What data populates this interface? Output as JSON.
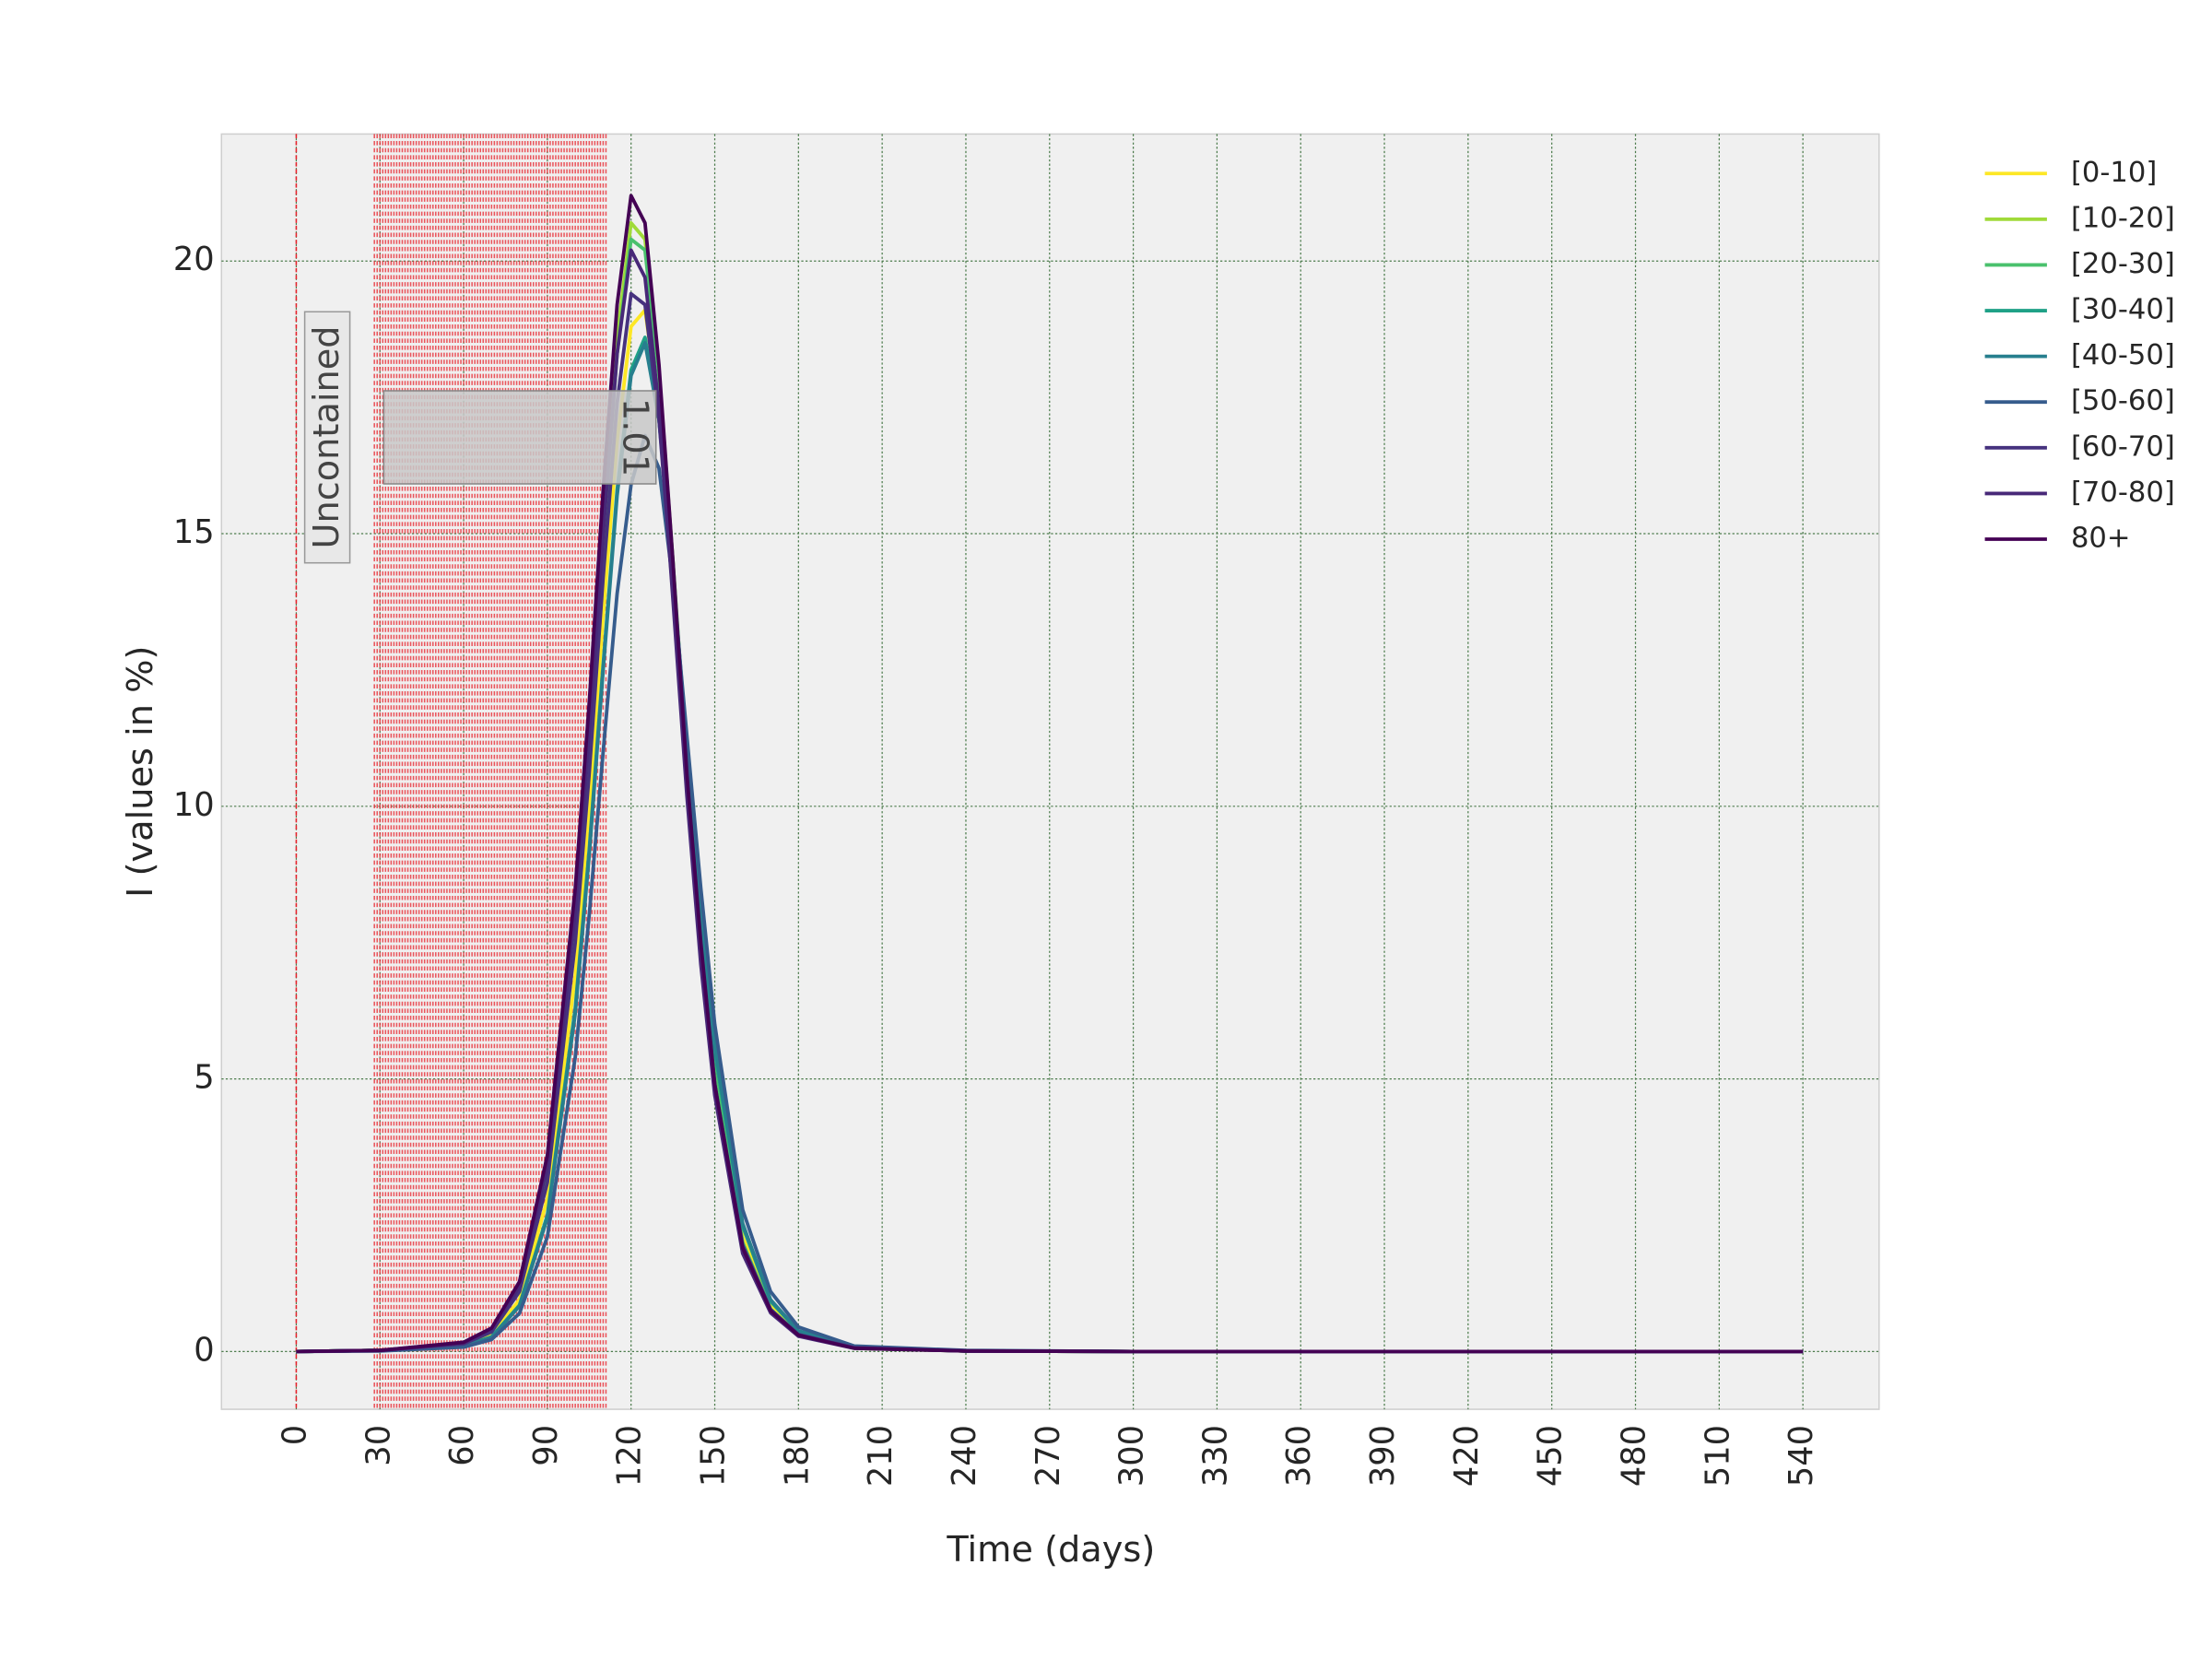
{
  "chart_data": {
    "type": "line",
    "xlabel": "Time (days)",
    "ylabel": "I (values in %)",
    "annotations": [
      "Uncontained",
      "1.01"
    ],
    "x": [
      0,
      30,
      60,
      70,
      80,
      90,
      100,
      105,
      110,
      115,
      120,
      125,
      130,
      135,
      140,
      145,
      150,
      160,
      170,
      180,
      200,
      240,
      300,
      540
    ],
    "series": [
      {
        "name": "[0-10]",
        "color": "#fde725",
        "values": [
          0,
          0.02,
          0.12,
          0.3,
          0.95,
          2.8,
          6.9,
          10.0,
          13.5,
          16.7,
          18.8,
          19.1,
          17.3,
          14.2,
          10.8,
          7.7,
          5.2,
          2.1,
          0.83,
          0.33,
          0.07,
          0.01,
          0,
          0
        ]
      },
      {
        "name": "[10-20]",
        "color": "#a0da39",
        "values": [
          0,
          0.02,
          0.15,
          0.38,
          1.15,
          3.3,
          8.0,
          11.4,
          15.2,
          18.6,
          20.7,
          20.4,
          18.0,
          14.5,
          10.8,
          7.6,
          5.0,
          1.95,
          0.76,
          0.3,
          0.06,
          0.01,
          0,
          0
        ]
      },
      {
        "name": "[20-30]",
        "color": "#4ac16d",
        "values": [
          0,
          0.02,
          0.14,
          0.36,
          1.1,
          3.2,
          7.8,
          11.1,
          14.9,
          18.3,
          20.4,
          20.2,
          17.9,
          14.5,
          10.8,
          7.6,
          5.1,
          2.0,
          0.78,
          0.31,
          0.07,
          0.01,
          0,
          0
        ]
      },
      {
        "name": "[30-40]",
        "color": "#1fa187",
        "values": [
          0,
          0.02,
          0.1,
          0.27,
          0.85,
          2.5,
          6.3,
          9.2,
          12.6,
          15.8,
          18.0,
          18.6,
          17.1,
          14.3,
          11.0,
          8.0,
          5.5,
          2.3,
          0.92,
          0.37,
          0.08,
          0.01,
          0,
          0
        ]
      },
      {
        "name": "[40-50]",
        "color": "#277f8e",
        "values": [
          0,
          0.02,
          0.1,
          0.26,
          0.83,
          2.45,
          6.2,
          9.1,
          12.5,
          15.7,
          17.9,
          18.5,
          17.1,
          14.3,
          11.1,
          8.1,
          5.6,
          2.35,
          0.95,
          0.38,
          0.08,
          0.01,
          0,
          0
        ]
      },
      {
        "name": "[50-60]",
        "color": "#365c8d",
        "values": [
          0,
          0.01,
          0.08,
          0.22,
          0.7,
          2.1,
          5.4,
          8.0,
          11.0,
          13.9,
          15.9,
          16.8,
          16.2,
          14.1,
          11.3,
          8.5,
          6.0,
          2.6,
          1.1,
          0.45,
          0.1,
          0.02,
          0,
          0
        ]
      },
      {
        "name": "[60-70]",
        "color": "#46327e",
        "values": [
          0,
          0.02,
          0.14,
          0.36,
          1.1,
          3.1,
          7.5,
          10.6,
          14.2,
          17.4,
          19.4,
          19.2,
          17.1,
          13.9,
          10.4,
          7.4,
          4.9,
          1.95,
          0.77,
          0.31,
          0.07,
          0.01,
          0,
          0
        ]
      },
      {
        "name": "[70-80]",
        "color": "#482878",
        "values": [
          0,
          0.02,
          0.16,
          0.41,
          1.2,
          3.4,
          8.1,
          11.4,
          15.0,
          18.3,
          20.2,
          19.7,
          17.3,
          13.8,
          10.2,
          7.1,
          4.7,
          1.8,
          0.71,
          0.28,
          0.06,
          0.01,
          0,
          0
        ]
      },
      {
        "name": "80+",
        "color": "#440154",
        "values": [
          0,
          0.02,
          0.17,
          0.43,
          1.28,
          3.6,
          8.5,
          11.9,
          15.8,
          19.2,
          21.2,
          20.7,
          18.1,
          14.5,
          10.6,
          7.5,
          4.9,
          1.9,
          0.75,
          0.3,
          0.06,
          0.01,
          0,
          0
        ]
      }
    ],
    "vlines": [
      0
    ],
    "vline_range": [
      28,
      111
    ],
    "vline_color": "#e8202a",
    "xlim": [
      -26.8,
      567.3
    ],
    "ylim": [
      -1.06,
      22.33
    ],
    "xticks": [
      0,
      30,
      60,
      90,
      120,
      150,
      180,
      210,
      240,
      270,
      300,
      330,
      360,
      390,
      420,
      450,
      480,
      510,
      540
    ],
    "yticks": [
      0,
      5,
      10,
      15,
      20
    ],
    "grid": true,
    "legend": "outside right"
  }
}
